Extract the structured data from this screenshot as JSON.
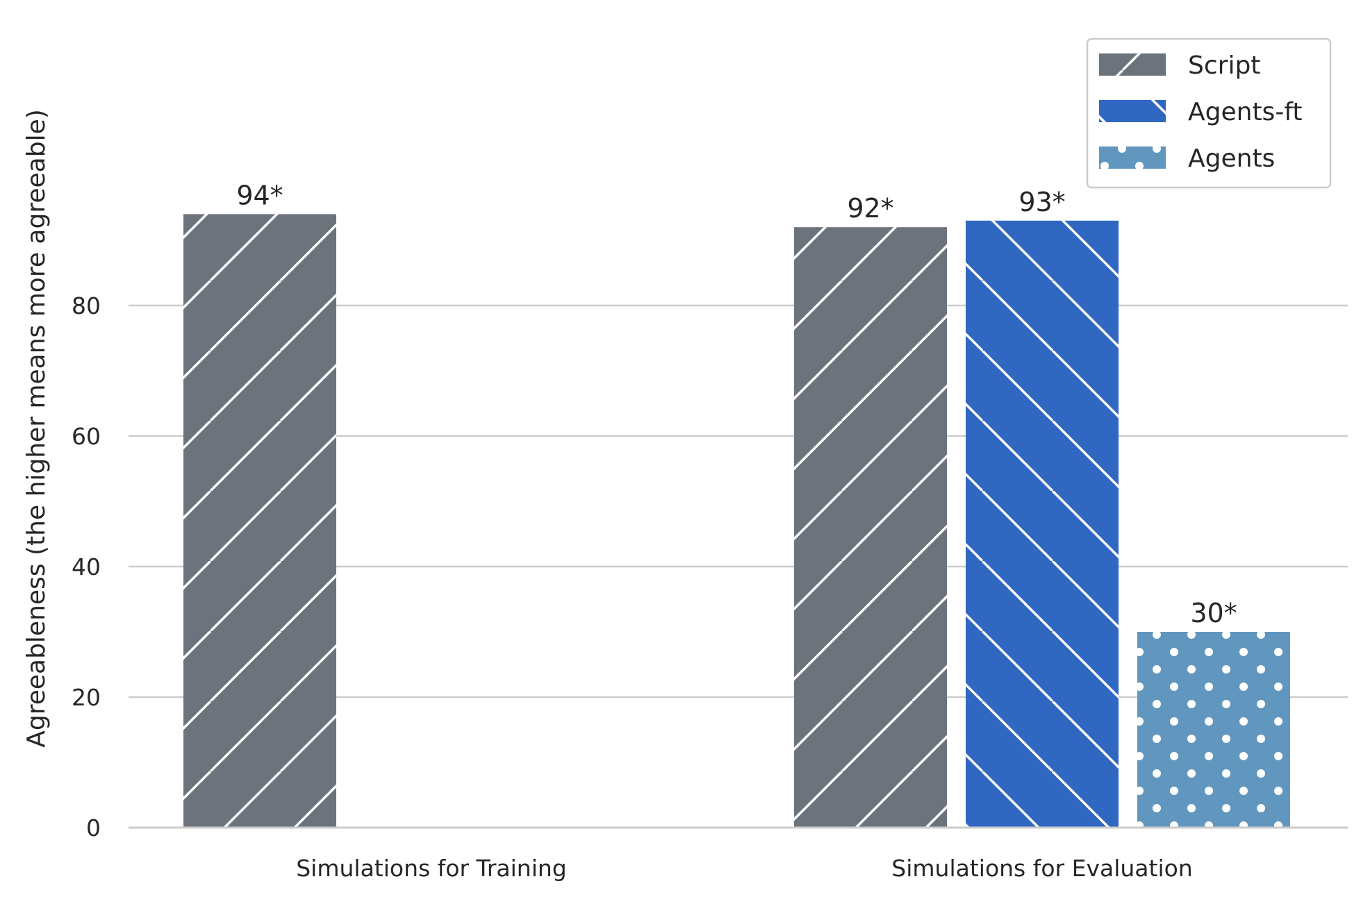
{
  "chart_data": {
    "type": "bar",
    "ylabel": "Agreeableness (the higher means more agreeable)",
    "xlabel": "",
    "ylim": [
      0,
      100
    ],
    "yticks": [
      0,
      20,
      40,
      60,
      80
    ],
    "grid": "horizontal",
    "legend_position": "top-right",
    "categories": [
      "Simulations for Training",
      "Simulations for Evaluation"
    ],
    "series": [
      {
        "name": "Script",
        "values": [
          94,
          92
        ],
        "labels": [
          "94*",
          "92*"
        ],
        "color": "#6c737d",
        "pattern": "forward-diagonal"
      },
      {
        "name": "Agents-ft",
        "values": [
          null,
          93
        ],
        "labels": [
          "",
          "93*"
        ],
        "color": "#3067c0",
        "pattern": "back-diagonal"
      },
      {
        "name": "Agents",
        "values": [
          null,
          30
        ],
        "labels": [
          "",
          "30*"
        ],
        "color": "#6197be",
        "pattern": "dots"
      }
    ]
  }
}
